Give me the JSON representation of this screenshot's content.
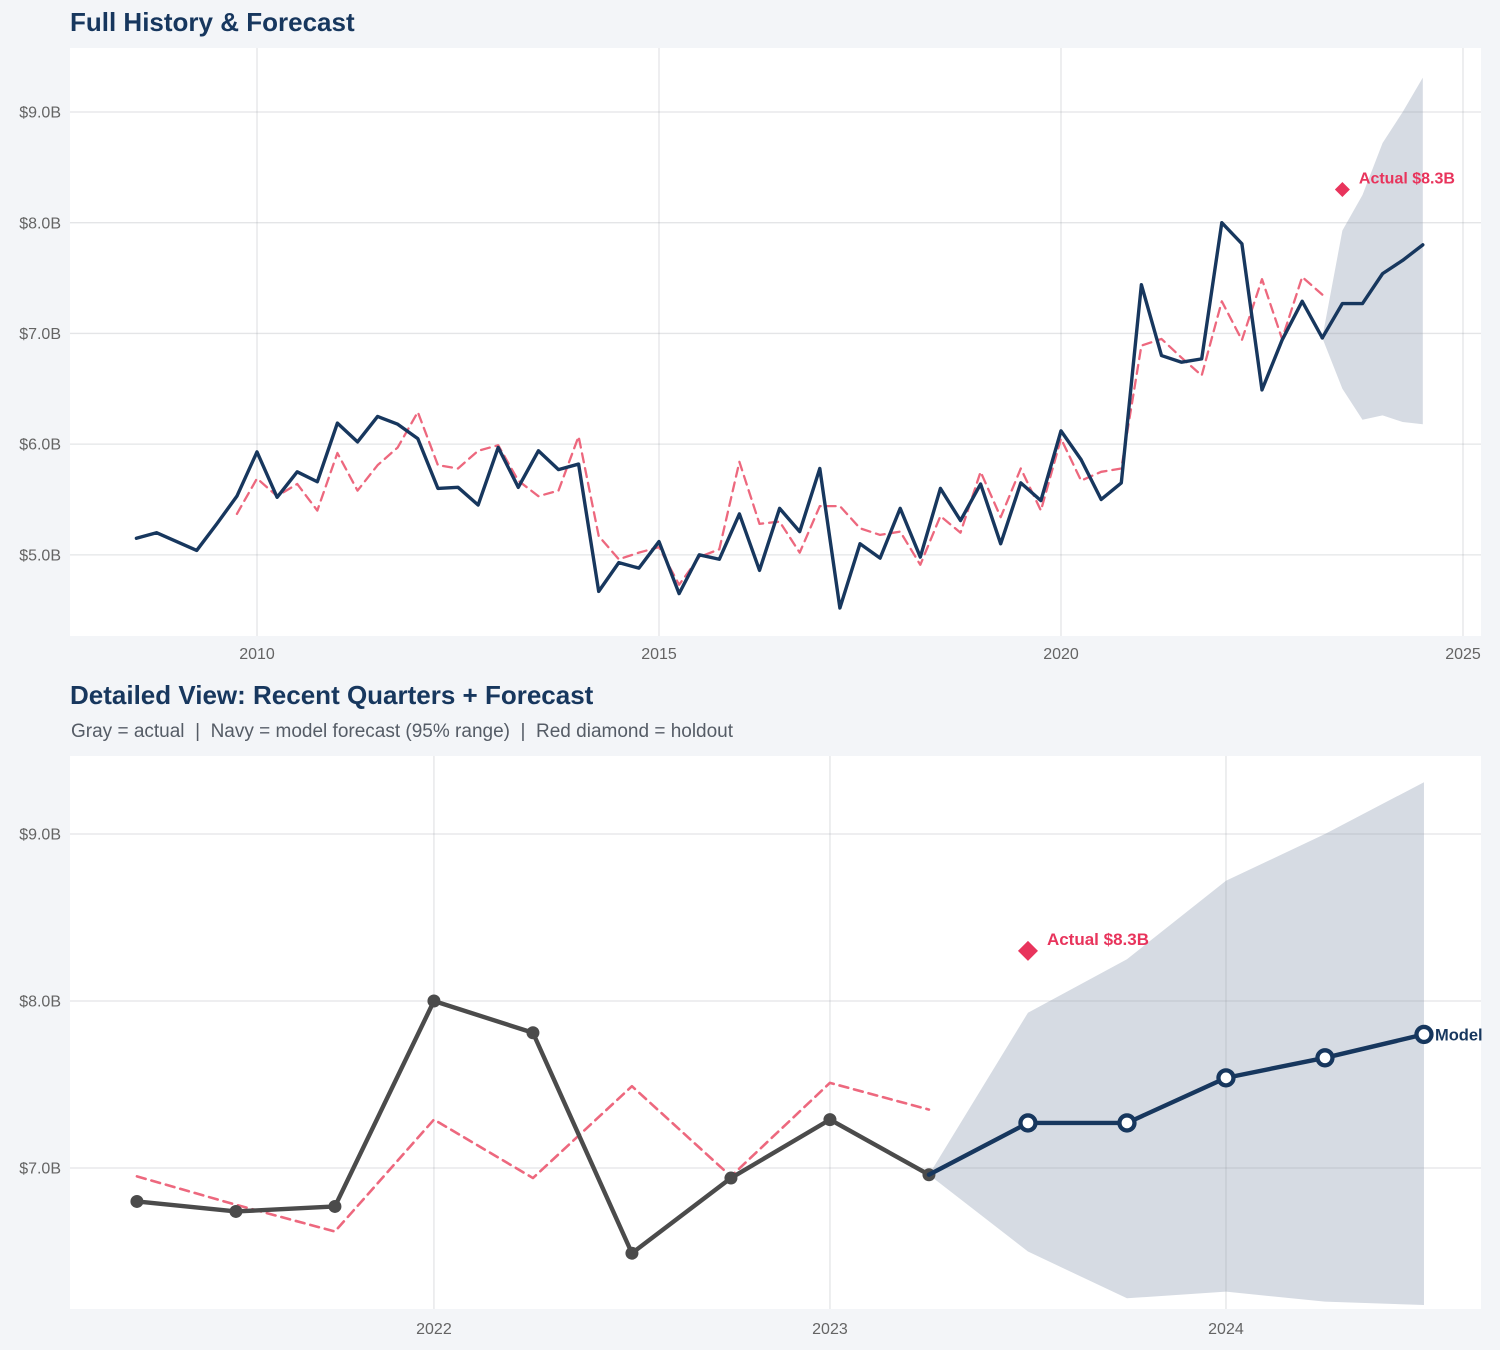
{
  "colors": {
    "navy": "#17375e",
    "pink": "#ed687e",
    "crimson": "#e8345c",
    "gray_line": "#4b4b4b",
    "band": "#d6dbe3",
    "grid": "#95989f",
    "tick": "#646464",
    "plot_bg": "#ffffff",
    "page_bg": "#f3f5f8",
    "title": "#17375e",
    "subtitle": "#555c66"
  },
  "chart_data": [
    {
      "type": "line",
      "title": "Full History & Forecast",
      "xlabel": "",
      "ylabel": "",
      "xlim": [
        2007.674,
        2025.224
      ],
      "ylim": [
        4.267,
        9.578
      ],
      "grid": true,
      "x_ticks": [
        {
          "value": 2010,
          "label": "2010"
        },
        {
          "value": 2015,
          "label": "2015"
        },
        {
          "value": 2020,
          "label": "2020"
        },
        {
          "value": 2025,
          "label": "2025"
        }
      ],
      "y_ticks": [
        {
          "value": 5,
          "label": "$5.0B"
        },
        {
          "value": 6,
          "label": "$6.0B"
        },
        {
          "value": 7,
          "label": "$7.0B"
        },
        {
          "value": 8,
          "label": "$8.0B"
        },
        {
          "value": 9,
          "label": "$9.0B"
        }
      ],
      "band": {
        "name": "forecast-95-range",
        "x": [
          2023.25,
          2023.5,
          2023.75,
          2024,
          2024.25,
          2024.5
        ],
        "upper": [
          6.96,
          7.93,
          8.25,
          8.72,
          9.0,
          9.31
        ],
        "lower": [
          6.96,
          6.5,
          6.22,
          6.26,
          6.2,
          6.18
        ]
      },
      "series": [
        {
          "name": "fitted",
          "color_key": "pink",
          "style": "dashed",
          "width": 2.3,
          "marker": "none",
          "x": [
            2009.75,
            2010,
            2010.25,
            2010.5,
            2010.75,
            2011,
            2011.25,
            2011.5,
            2011.75,
            2012,
            2012.25,
            2012.5,
            2012.75,
            2013,
            2013.25,
            2013.5,
            2013.75,
            2014,
            2014.25,
            2014.5,
            2014.75,
            2015,
            2015.25,
            2015.5,
            2015.75,
            2016,
            2016.25,
            2016.5,
            2016.75,
            2017,
            2017.25,
            2017.5,
            2017.75,
            2018,
            2018.25,
            2018.5,
            2018.75,
            2019,
            2019.25,
            2019.5,
            2019.75,
            2020,
            2020.25,
            2020.5,
            2020.75,
            2021,
            2021.25,
            2021.5,
            2021.75,
            2022,
            2022.25,
            2022.5,
            2022.75,
            2023,
            2023.25
          ],
          "y": [
            5.37,
            5.69,
            5.53,
            5.64,
            5.4,
            5.92,
            5.58,
            5.81,
            5.97,
            6.29,
            5.81,
            5.78,
            5.94,
            5.99,
            5.67,
            5.53,
            5.58,
            6.07,
            5.17,
            4.96,
            5.02,
            5.07,
            4.73,
            4.98,
            5.05,
            5.84,
            5.28,
            5.3,
            5.02,
            5.44,
            5.44,
            5.24,
            5.18,
            5.21,
            4.91,
            5.35,
            5.2,
            5.75,
            5.34,
            5.78,
            5.4,
            6.05,
            5.67,
            5.75,
            5.78,
            6.89,
            6.95,
            6.78,
            6.62,
            7.29,
            6.94,
            7.49,
            6.95,
            7.51,
            7.35
          ]
        },
        {
          "name": "actual",
          "color_key": "navy",
          "style": "solid",
          "width": 3.4,
          "marker": "none",
          "x": [
            2008.5,
            2008.75,
            2009,
            2009.25,
            2009.5,
            2009.75,
            2010,
            2010.25,
            2010.5,
            2010.75,
            2011,
            2011.25,
            2011.5,
            2011.75,
            2012,
            2012.25,
            2012.5,
            2012.75,
            2013,
            2013.25,
            2013.5,
            2013.75,
            2014,
            2014.25,
            2014.5,
            2014.75,
            2015,
            2015.25,
            2015.5,
            2015.75,
            2016,
            2016.25,
            2016.5,
            2016.75,
            2017,
            2017.25,
            2017.5,
            2017.75,
            2018,
            2018.25,
            2018.5,
            2018.75,
            2019,
            2019.25,
            2019.5,
            2019.75,
            2020,
            2020.25,
            2020.5,
            2020.75,
            2021,
            2021.25,
            2021.5,
            2021.75,
            2022,
            2022.25,
            2022.5,
            2022.75,
            2023,
            2023.25
          ],
          "y": [
            5.15,
            5.2,
            5.12,
            5.04,
            5.28,
            5.53,
            5.93,
            5.52,
            5.75,
            5.66,
            6.19,
            6.02,
            6.25,
            6.18,
            6.05,
            5.6,
            5.61,
            5.45,
            5.97,
            5.61,
            5.94,
            5.77,
            5.82,
            4.67,
            4.93,
            4.88,
            5.12,
            4.65,
            5.0,
            4.96,
            5.37,
            4.86,
            5.42,
            5.21,
            5.78,
            4.52,
            5.1,
            4.97,
            5.42,
            4.98,
            5.6,
            5.31,
            5.64,
            5.1,
            5.65,
            5.49,
            6.12,
            5.86,
            5.5,
            5.65,
            7.44,
            6.8,
            6.74,
            6.77,
            8.0,
            7.81,
            6.49,
            6.94,
            7.29,
            6.96
          ]
        },
        {
          "name": "forecast",
          "color_key": "navy",
          "style": "solid",
          "width": 3.4,
          "marker": "none",
          "x": [
            2023.25,
            2023.5,
            2023.75,
            2024,
            2024.25,
            2024.5
          ],
          "y": [
            6.96,
            7.27,
            7.27,
            7.54,
            7.66,
            7.8
          ]
        }
      ],
      "annotations": [
        {
          "type": "diamond",
          "x": 2023.5,
          "y": 8.3,
          "size": 7.5,
          "label": "Actual $8.3B",
          "font_size": 16,
          "color_key": "crimson"
        }
      ]
    },
    {
      "type": "line",
      "title": "Detailed View: Recent Quarters + Forecast",
      "subtitle": "Gray = actual  |  Navy = model forecast (95% range)  |  Red diamond = holdout",
      "xlabel": "",
      "ylabel": "",
      "xlim": [
        2021.081,
        2024.644
      ],
      "ylim": [
        6.156,
        9.467
      ],
      "grid": true,
      "x_ticks": [
        {
          "value": 2022,
          "label": "2022"
        },
        {
          "value": 2023,
          "label": "2023"
        },
        {
          "value": 2024,
          "label": "2024"
        }
      ],
      "y_ticks": [
        {
          "value": 7,
          "label": "$7.0B"
        },
        {
          "value": 8,
          "label": "$8.0B"
        },
        {
          "value": 9,
          "label": "$9.0B"
        }
      ],
      "band": {
        "name": "forecast-95-range",
        "x": [
          2023.25,
          2023.5,
          2023.75,
          2024,
          2024.25,
          2024.5
        ],
        "upper": [
          6.96,
          7.93,
          8.25,
          8.72,
          9.0,
          9.31
        ],
        "lower": [
          6.96,
          6.5,
          6.22,
          6.26,
          6.2,
          6.18
        ]
      },
      "series": [
        {
          "name": "fitted",
          "color_key": "pink",
          "style": "dashed",
          "width": 2.6,
          "marker": "none",
          "x": [
            2021.25,
            2021.5,
            2021.75,
            2022,
            2022.25,
            2022.5,
            2022.75,
            2023,
            2023.25
          ],
          "y": [
            6.95,
            6.78,
            6.62,
            7.29,
            6.94,
            7.49,
            6.95,
            7.51,
            7.35
          ]
        },
        {
          "name": "actual",
          "color_key": "gray_line",
          "style": "solid",
          "width": 4.4,
          "marker": "dot",
          "marker_size": 6.5,
          "x": [
            2021.25,
            2021.5,
            2021.75,
            2022,
            2022.25,
            2022.5,
            2022.75,
            2023,
            2023.25
          ],
          "y": [
            6.8,
            6.74,
            6.77,
            8.0,
            7.81,
            6.49,
            6.94,
            7.29,
            6.96
          ]
        },
        {
          "name": "forecast",
          "color_key": "navy",
          "style": "solid",
          "width": 4.4,
          "marker": "open-circle",
          "marker_size": 7.5,
          "marker_skip_first": true,
          "end_label": "Model",
          "x": [
            2023.25,
            2023.5,
            2023.75,
            2024,
            2024.25,
            2024.5
          ],
          "y": [
            6.96,
            7.27,
            7.27,
            7.54,
            7.66,
            7.8
          ]
        }
      ],
      "annotations": [
        {
          "type": "diamond",
          "x": 2023.5,
          "y": 8.3,
          "size": 10,
          "label": "Actual $8.3B",
          "font_size": 17,
          "color_key": "crimson"
        }
      ]
    }
  ]
}
